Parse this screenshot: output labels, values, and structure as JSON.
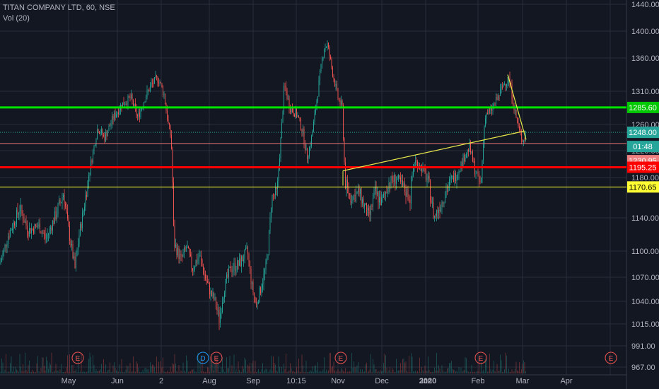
{
  "header": {
    "title": "TITAN COMPANY LTD, 60, NSE",
    "indicator": "Vol (20)"
  },
  "price_axis": {
    "ticks": [
      "1440.00",
      "1400.00",
      "1360.00",
      "1310.00",
      "1260.00",
      "1220.00",
      "1180.00",
      "1140.00",
      "1100.00",
      "1070.00",
      "1040.00",
      "1015.00",
      "991.00",
      "967.00"
    ],
    "tick_values": [
      1440,
      1400,
      1360,
      1310,
      1260,
      1220,
      1180,
      1140,
      1100,
      1070,
      1040,
      1015,
      991,
      967
    ]
  },
  "time_axis": {
    "labels": [
      "May",
      "Jun",
      "2",
      "Aug",
      "Sep",
      "10:15",
      "Nov",
      "Dec",
      "Jan",
      "2020",
      "Feb",
      "Mar",
      "Apr"
    ]
  },
  "levels": [
    {
      "name": "green-level",
      "label": "1285.60",
      "value": 1285.6,
      "color": "#00e600",
      "bg": "#00c800",
      "fg": "#ffffff"
    },
    {
      "name": "current-price",
      "label": "1248.00",
      "value": 1248.0,
      "color": "#26a69a",
      "bg": "#26a69a",
      "fg": "#ffffff"
    },
    {
      "name": "countdown",
      "label": "01:48",
      "value": 1238.0,
      "color": "#26a69a",
      "bg": "#26a69a",
      "fg": "#ffffff"
    },
    {
      "name": "pink-level",
      "label": "1230.95",
      "value": 1230.95,
      "color": "#e57373",
      "bg": "#f08080",
      "fg": "#ffffff"
    },
    {
      "name": "red-level",
      "label": "1195.25",
      "value": 1195.25,
      "color": "#ff0000",
      "bg": "#ff0000",
      "fg": "#ffffff"
    },
    {
      "name": "yellow-level",
      "label": "1170.65",
      "value": 1170.65,
      "color": "#ffff33",
      "bg": "#ffff33",
      "fg": "#000000"
    }
  ],
  "event_markers": [
    {
      "type": "earnings",
      "label": "E"
    },
    {
      "type": "dividend",
      "label": "D"
    },
    {
      "type": "earnings",
      "label": "E"
    },
    {
      "type": "earnings",
      "label": "E"
    },
    {
      "type": "earnings",
      "label": "E"
    },
    {
      "type": "earnings",
      "label": "E"
    }
  ],
  "colors": {
    "background": "#131722",
    "grid": "#2a2e39",
    "up": "#26a69a",
    "down": "#ef5350",
    "text": "#b2b5be",
    "trendline": "#e8e84a",
    "earnings": "#ef5350",
    "dividend": "#2196f3"
  }
}
